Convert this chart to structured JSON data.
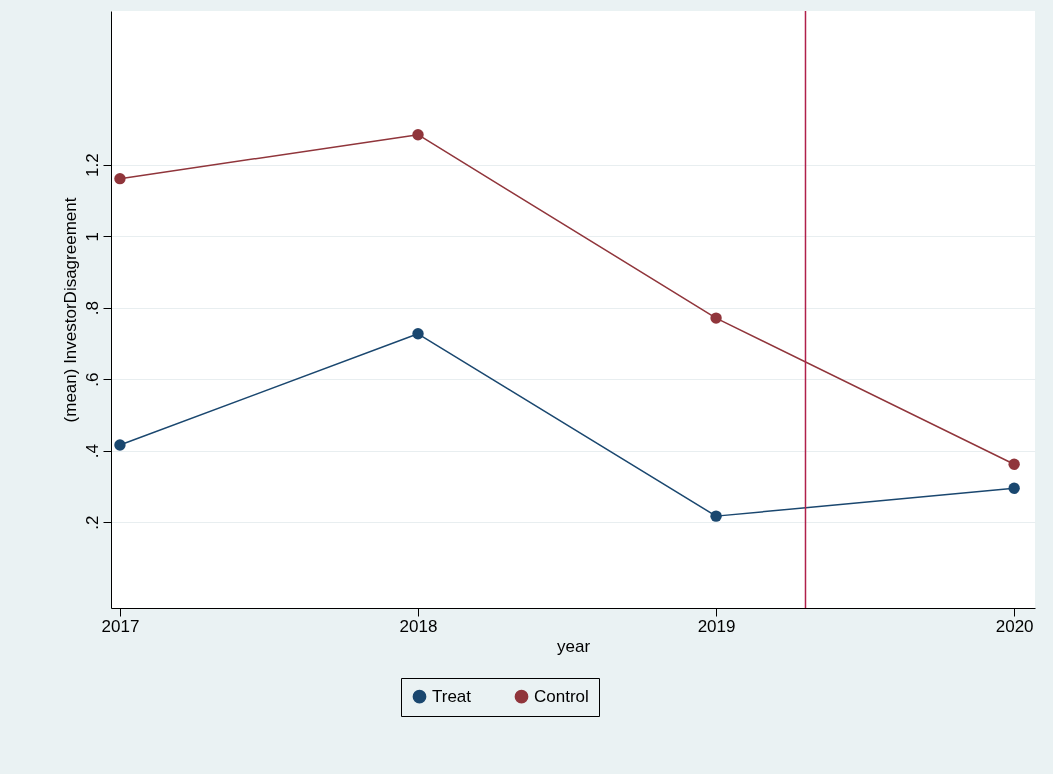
{
  "chart_data": {
    "type": "line",
    "xlabel": "year",
    "ylabel": "(mean) InvestorDisagreement",
    "x": [
      2017,
      2018,
      2019,
      2020
    ],
    "series": [
      {
        "name": "Treat",
        "color": "#1a476f",
        "values": [
          0.416,
          0.727,
          0.217,
          0.295
        ]
      },
      {
        "name": "Control",
        "color": "#90353b",
        "values": [
          1.161,
          1.284,
          0.771,
          0.362
        ]
      }
    ],
    "xlim": [
      2016.97,
      2020.07
    ],
    "xticks": [
      2017,
      2018,
      2019,
      2020
    ],
    "ylim": [
      -0.04,
      1.63
    ],
    "yticks": [
      {
        "value": 0.2,
        "label": ".2"
      },
      {
        "value": 0.4,
        "label": ".4"
      },
      {
        "value": 0.6,
        "label": ".6"
      },
      {
        "value": 0.8,
        "label": ".8"
      },
      {
        "value": 1,
        "label": "1"
      },
      {
        "value": 1.2,
        "label": "1.2"
      }
    ],
    "ref_lines": [
      {
        "axis": "x",
        "value": 2019.3,
        "color": "#b0204a"
      }
    ],
    "grid": "y",
    "legend": "bottom",
    "marker": "circle",
    "line_style": "solid"
  }
}
